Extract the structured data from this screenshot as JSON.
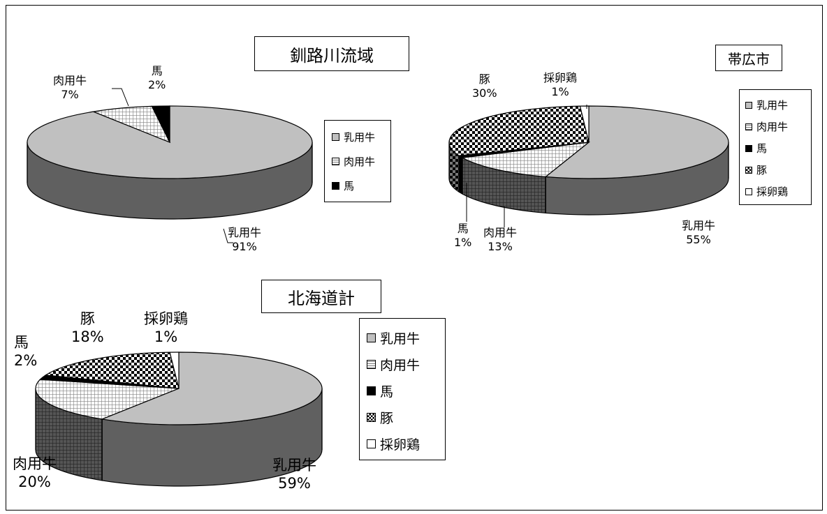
{
  "patterns": {
    "乳用牛": "solid-gray",
    "肉用牛": "grid",
    "馬": "solid-black",
    "豚": "checker",
    "採卵鶏": "solid-white"
  },
  "colors": {
    "gray_top": "#c0c0c0",
    "gray_side": "#606060",
    "black": "#000000",
    "white": "#ffffff"
  },
  "chart_data": [
    {
      "type": "pie",
      "title": "釧路川流域",
      "categories": [
        "乳用牛",
        "肉用牛",
        "馬"
      ],
      "values": [
        91,
        7,
        2
      ],
      "data_labels": [
        {
          "name": "乳用牛",
          "pct": "91%"
        },
        {
          "name": "肉用牛",
          "pct": "7%"
        },
        {
          "name": "馬",
          "pct": "2%"
        }
      ],
      "legend": [
        "乳用牛",
        "肉用牛",
        "馬"
      ],
      "legend_position": "right"
    },
    {
      "type": "pie",
      "title": "帯広市",
      "categories": [
        "乳用牛",
        "肉用牛",
        "馬",
        "豚",
        "採卵鶏"
      ],
      "values": [
        55,
        13,
        1,
        30,
        1
      ],
      "data_labels": [
        {
          "name": "乳用牛",
          "pct": "55%"
        },
        {
          "name": "肉用牛",
          "pct": "13%"
        },
        {
          "name": "馬",
          "pct": "1%"
        },
        {
          "name": "豚",
          "pct": "30%"
        },
        {
          "name": "採卵鶏",
          "pct": "1%"
        }
      ],
      "legend": [
        "乳用牛",
        "肉用牛",
        "馬",
        "豚",
        "採卵鶏"
      ],
      "legend_position": "right"
    },
    {
      "type": "pie",
      "title": "北海道計",
      "categories": [
        "乳用牛",
        "肉用牛",
        "馬",
        "豚",
        "採卵鶏"
      ],
      "values": [
        59,
        20,
        2,
        18,
        1
      ],
      "data_labels": [
        {
          "name": "乳用牛",
          "pct": "59%"
        },
        {
          "name": "肉用牛",
          "pct": "20%"
        },
        {
          "name": "馬",
          "pct": "2%"
        },
        {
          "name": "豚",
          "pct": "18%"
        },
        {
          "name": "採卵鶏",
          "pct": "1%"
        }
      ],
      "legend": [
        "乳用牛",
        "肉用牛",
        "馬",
        "豚",
        "採卵鶏"
      ],
      "legend_position": "right"
    }
  ]
}
